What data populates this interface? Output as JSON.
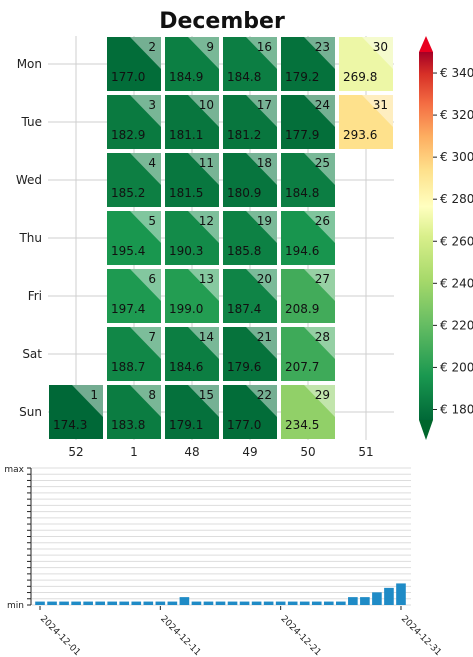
{
  "chart_data": [
    {
      "type": "heatmap",
      "title": "December",
      "row_labels": [
        "Mon",
        "Tue",
        "Wed",
        "Thu",
        "Fri",
        "Sat",
        "Sun"
      ],
      "column_labels": [
        "52",
        "1",
        "48",
        "49",
        "50",
        "51"
      ],
      "cells": [
        {
          "day": "1",
          "value": "174.3",
          "col": 0,
          "row": 6
        },
        {
          "day": "2",
          "value": "177.0",
          "col": 1,
          "row": 0
        },
        {
          "day": "3",
          "value": "182.9",
          "col": 1,
          "row": 1
        },
        {
          "day": "4",
          "value": "185.2",
          "col": 1,
          "row": 2
        },
        {
          "day": "5",
          "value": "195.4",
          "col": 1,
          "row": 3
        },
        {
          "day": "6",
          "value": "197.4",
          "col": 1,
          "row": 4
        },
        {
          "day": "7",
          "value": "188.7",
          "col": 1,
          "row": 5
        },
        {
          "day": "8",
          "value": "183.8",
          "col": 1,
          "row": 6
        },
        {
          "day": "9",
          "value": "184.9",
          "col": 2,
          "row": 0
        },
        {
          "day": "10",
          "value": "181.1",
          "col": 2,
          "row": 1
        },
        {
          "day": "11",
          "value": "181.5",
          "col": 2,
          "row": 2
        },
        {
          "day": "12",
          "value": "190.3",
          "col": 2,
          "row": 3
        },
        {
          "day": "13",
          "value": "199.0",
          "col": 2,
          "row": 4
        },
        {
          "day": "14",
          "value": "184.6",
          "col": 2,
          "row": 5
        },
        {
          "day": "15",
          "value": "179.1",
          "col": 2,
          "row": 6
        },
        {
          "day": "16",
          "value": "184.8",
          "col": 3,
          "row": 0
        },
        {
          "day": "17",
          "value": "181.2",
          "col": 3,
          "row": 1
        },
        {
          "day": "18",
          "value": "180.9",
          "col": 3,
          "row": 2
        },
        {
          "day": "19",
          "value": "185.8",
          "col": 3,
          "row": 3
        },
        {
          "day": "20",
          "value": "187.4",
          "col": 3,
          "row": 4
        },
        {
          "day": "21",
          "value": "179.6",
          "col": 3,
          "row": 5
        },
        {
          "day": "22",
          "value": "177.0",
          "col": 3,
          "row": 6
        },
        {
          "day": "23",
          "value": "179.2",
          "col": 4,
          "row": 0
        },
        {
          "day": "24",
          "value": "177.9",
          "col": 4,
          "row": 1
        },
        {
          "day": "25",
          "value": "184.8",
          "col": 4,
          "row": 2
        },
        {
          "day": "26",
          "value": "194.6",
          "col": 4,
          "row": 3
        },
        {
          "day": "27",
          "value": "208.9",
          "col": 4,
          "row": 4
        },
        {
          "day": "28",
          "value": "207.7",
          "col": 4,
          "row": 5
        },
        {
          "day": "29",
          "value": "234.5",
          "col": 4,
          "row": 6
        },
        {
          "day": "30",
          "value": "269.8",
          "col": 5,
          "row": 0
        },
        {
          "day": "31",
          "value": "293.6",
          "col": 5,
          "row": 1
        }
      ],
      "colorbar": {
        "ticks": [
          "€ 180",
          "€ 200",
          "€ 220",
          "€ 240",
          "€ 260",
          "€ 280",
          "€ 300",
          "€ 320",
          "€ 340"
        ],
        "tick_values": [
          180,
          200,
          220,
          240,
          260,
          280,
          300,
          320,
          340
        ],
        "range": [
          175,
          350
        ]
      }
    },
    {
      "type": "bar",
      "y_tick_labels": {
        "max": "max",
        "min": "min"
      },
      "x_tick_labels": [
        "2024-12-01",
        "2024-12-11",
        "2024-12-21",
        "2024-12-31"
      ],
      "values": [
        1,
        1,
        1,
        1,
        1,
        1,
        1,
        1,
        1,
        1,
        1,
        1,
        2.3,
        1,
        1,
        1,
        1,
        1,
        1,
        1,
        1,
        1,
        1,
        1,
        1,
        1,
        2.3,
        2.3,
        3.7,
        5,
        6.3
      ]
    }
  ]
}
